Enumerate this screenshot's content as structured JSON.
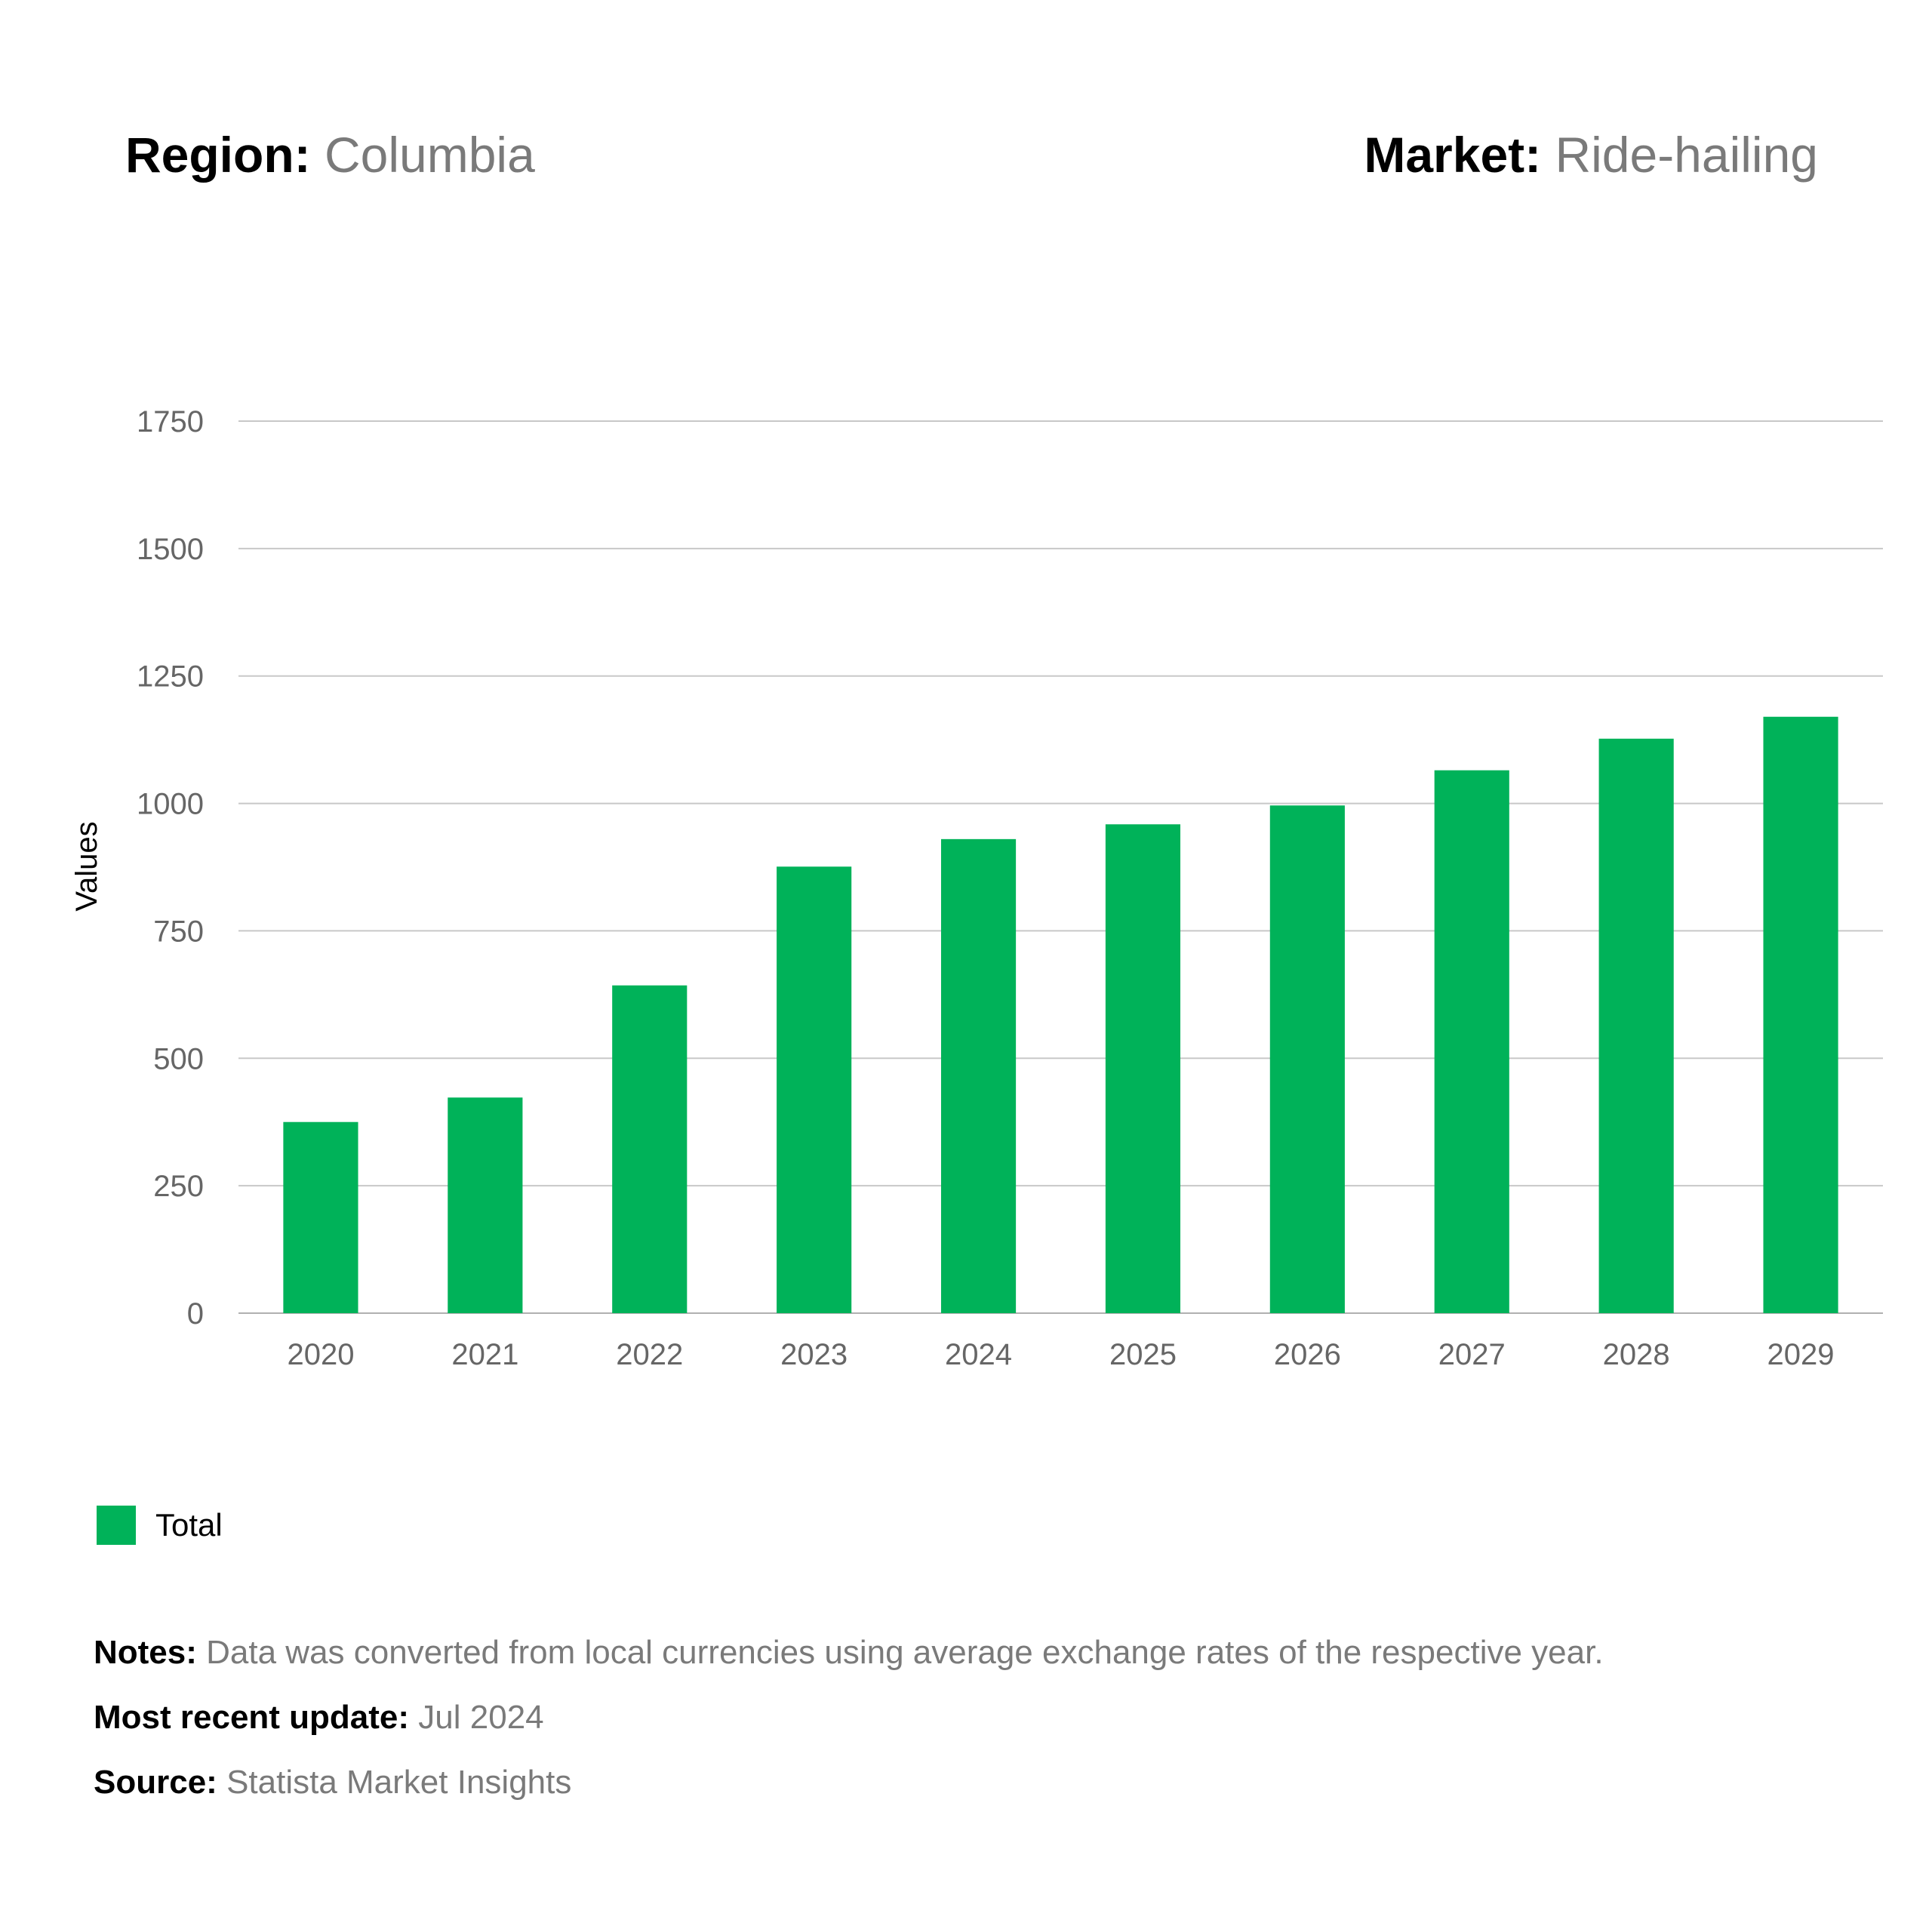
{
  "header": {
    "region_label": "Region:",
    "region_value": "Columbia",
    "market_label": "Market:",
    "market_value": "Ride-hailing"
  },
  "colors": {
    "bar": "#00b259",
    "grid": "#c8c8c8",
    "tick_text": "#666666"
  },
  "chart_data": {
    "type": "bar",
    "categories": [
      "2020",
      "2021",
      "2022",
      "2023",
      "2024",
      "2025",
      "2026",
      "2027",
      "2028",
      "2029"
    ],
    "series": [
      {
        "name": "Total",
        "values": [
          375,
          423,
          643,
          876,
          930,
          959,
          996,
          1065,
          1127,
          1170
        ]
      }
    ],
    "ylabel": "Values",
    "xlabel": "",
    "ylim": [
      0,
      1750
    ],
    "yticks": [
      0,
      250,
      500,
      750,
      1000,
      1250,
      1500,
      1750
    ],
    "grid": true,
    "legend_position": "bottom-left"
  },
  "legend": {
    "label": "Total"
  },
  "notes": {
    "notes_label": "Notes:",
    "notes_value": "Data was converted from local currencies using average exchange rates of the respective year.",
    "update_label": "Most recent update:",
    "update_value": "Jul 2024",
    "source_label": "Source:",
    "source_value": "Statista Market Insights"
  }
}
